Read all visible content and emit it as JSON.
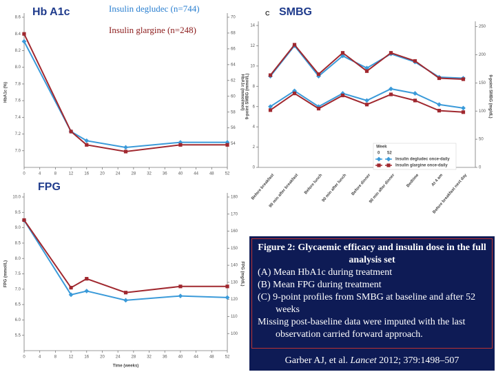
{
  "slide_labels": {
    "hba1c": "Hb A1c",
    "degludec": "Insulin degludec (n=744)",
    "glargine": "Insulin glargine (n=248)",
    "smbg": "SMBG",
    "fpg": "FPG"
  },
  "chart_data": [
    {
      "type": "line",
      "ylabel": "HbA1c (%)",
      "y2label": "HbA1c (mmol/mol)",
      "x": [
        0,
        12,
        16,
        26,
        40,
        52
      ],
      "xlim": [
        0,
        52
      ],
      "xticks": [
        0,
        4,
        8,
        12,
        16,
        20,
        24,
        28,
        32,
        36,
        40,
        44,
        48,
        52
      ],
      "ylim": [
        6.8,
        8.6
      ],
      "yticks": [
        {
          "value": 7,
          "label": "7.0"
        },
        {
          "value": 7.2,
          "label": "7.2"
        },
        {
          "value": 7.4,
          "label": "7.4"
        },
        {
          "value": 7.6,
          "label": "7.6"
        },
        {
          "value": 7.8,
          "label": "7.8"
        },
        {
          "value": 8,
          "label": "8.0"
        },
        {
          "value": 8.2,
          "label": "8.2"
        },
        {
          "value": 8.4,
          "label": "8.4"
        },
        {
          "value": 8.6,
          "label": "8.6"
        }
      ],
      "y2lim": [
        51,
        70
      ],
      "y2ticks": [
        54,
        56,
        58,
        60,
        62,
        64,
        66,
        68,
        70
      ],
      "series": [
        {
          "color": "#3a9ad9",
          "marker": "diamond",
          "values": [
            8.31,
            7.23,
            7.12,
            7.04,
            7.1,
            7.1
          ]
        },
        {
          "color": "#a0282f",
          "marker": "square",
          "values": [
            8.4,
            7.23,
            7.07,
            6.99,
            7.07,
            7.07
          ]
        }
      ]
    },
    {
      "type": "line",
      "xlabel": "Time (weeks)",
      "ylabel": "FPG (mmol/L)",
      "y2label": "FPG (mg/dL)",
      "x": [
        0,
        12,
        16,
        26,
        40,
        52
      ],
      "xlim": [
        0,
        52
      ],
      "xticks": [
        0,
        4,
        8,
        12,
        16,
        20,
        24,
        28,
        32,
        36,
        40,
        44,
        48,
        52
      ],
      "ylim": [
        5,
        10
      ],
      "yticks": [
        5.5,
        {
          "value": 6,
          "label": "6.0"
        },
        6.5,
        {
          "value": 7,
          "label": "7.0"
        },
        7.5,
        {
          "value": 8,
          "label": "8.0"
        },
        8.5,
        {
          "value": 9,
          "label": "9.0"
        },
        9.5,
        {
          "value": 10,
          "label": "10.0"
        }
      ],
      "y2lim": [
        90,
        180
      ],
      "y2ticks": [
        100,
        110,
        120,
        130,
        140,
        150,
        160,
        170,
        180
      ],
      "series": [
        {
          "color": "#3a9ad9",
          "marker": "diamond",
          "values": [
            9.24,
            6.82,
            6.94,
            6.64,
            6.78,
            6.73
          ]
        },
        {
          "color": "#a0282f",
          "marker": "square",
          "values": [
            9.25,
            7.05,
            7.34,
            6.89,
            7.09,
            7.09
          ]
        }
      ]
    },
    {
      "type": "category-line",
      "panel_label": "C",
      "ylabel": "9-point SMBG (mmol/L)",
      "y2label": "9-point SMBG (mg/dL)",
      "categories": [
        "Before breakfast",
        "90 min after breakfast",
        "Before lunch",
        "90 min after lunch",
        "Before dinner",
        "90 min after dinner",
        "Bedtime",
        "At 4 am",
        "Before breakfast next day"
      ],
      "ylim": [
        0,
        14
      ],
      "yticks": [
        0,
        2,
        4,
        6,
        8,
        10,
        12,
        14
      ],
      "y2lim": [
        0,
        252
      ],
      "y2ticks": [
        0,
        50,
        100,
        150,
        200,
        250
      ],
      "legend_title": "Week",
      "weeks": [
        "0",
        "52"
      ],
      "series": [
        {
          "name": "Insulin degludec once-daily",
          "color": "#3a9ad9",
          "marker": "diamond",
          "values_by_week": [
            [
              9.0,
              12.0,
              9.0,
              11.0,
              9.8,
              11.2,
              10.4,
              8.9,
              8.8
            ],
            [
              6.0,
              7.55,
              6.0,
              7.3,
              6.6,
              7.75,
              7.3,
              6.2,
              5.85
            ]
          ]
        },
        {
          "name": "Insulin glargine once-daily",
          "color": "#a0282f",
          "marker": "square",
          "values_by_week": [
            [
              9.1,
              12.1,
              9.2,
              11.3,
              9.5,
              11.3,
              10.5,
              8.8,
              8.7
            ],
            [
              5.65,
              7.3,
              5.8,
              7.1,
              6.2,
              7.2,
              6.6,
              5.6,
              5.45
            ]
          ]
        }
      ]
    }
  ],
  "caption": {
    "title": "Figure 2: Glycaemic efficacy and insulin dose in the full analysis set",
    "lines": [
      "(A) Mean HbA1c during treatment",
      "(B) Mean FPG during treatment",
      "(C) 9-point profiles from SMBG at baseline and after 52 weeks",
      "Missing post-baseline data were imputed with the last observation carried forward approach."
    ],
    "citation": [
      "Garber AJ, et al. ",
      "Lancet",
      " 2012; 379:1498–507"
    ]
  }
}
